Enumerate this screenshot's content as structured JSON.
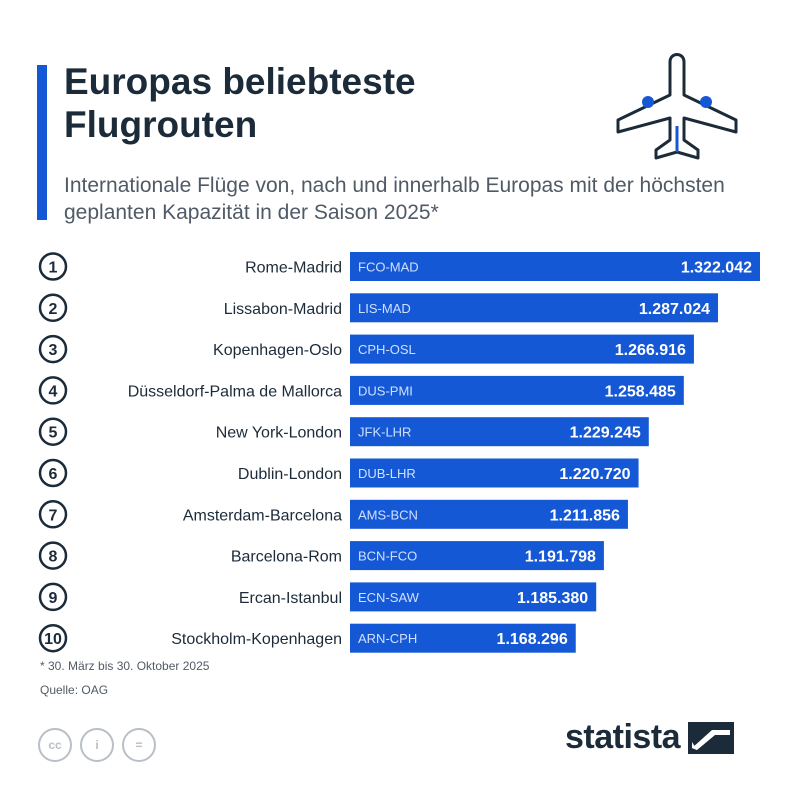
{
  "title": "Europas beliebteste Flugrouten",
  "subtitle": "Internationale Flüge von, nach und innerhalb Europas mit der höchsten geplanten Kapazität in der Saison 2025*",
  "footnote": "* 30. März bis 30. Oktober 2025",
  "source": "Quelle: OAG",
  "brand": "statista",
  "license_icons": [
    "cc-icon",
    "attribution-icon",
    "no-derivatives-icon"
  ],
  "colors": {
    "bar": "#1558d6",
    "accent": "#1558d6",
    "text": "#1c2b39",
    "code": "#cfe0ff"
  },
  "chart_data": {
    "type": "bar",
    "orientation": "horizontal",
    "categories": [
      "Rome-Madrid",
      "Lissabon-Madrid",
      "Kopenhagen-Oslo",
      "Düsseldorf-Palma de Mallorca",
      "New York-London",
      "Dublin-London",
      "Amsterdam-Barcelona",
      "Barcelona-Rom",
      "Ercan-Istanbul",
      "Stockholm-Kopenhagen"
    ],
    "ranks": [
      "1",
      "2",
      "3",
      "4",
      "5",
      "6",
      "7",
      "8",
      "9",
      "10"
    ],
    "codes": [
      "FCO-MAD",
      "LIS-MAD",
      "CPH-OSL",
      "DUS-PMI",
      "JFK-LHR",
      "DUB-LHR",
      "AMS-BCN",
      "BCN-FCO",
      "ECN-SAW",
      "ARN-CPH"
    ],
    "values": [
      1322042,
      1287024,
      1266916,
      1258485,
      1229245,
      1220720,
      1211856,
      1191798,
      1185380,
      1168296
    ],
    "value_labels": [
      "1.322.042",
      "1.287.024",
      "1.266.916",
      "1.258.485",
      "1.229.245",
      "1.220.720",
      "1.211.856",
      "1.191.798",
      "1.185.380",
      "1.168.296"
    ],
    "xlim": [
      0,
      1322042
    ],
    "grid": false,
    "legend": "none"
  }
}
